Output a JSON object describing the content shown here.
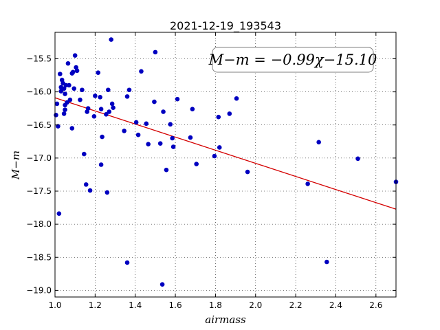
{
  "chart_data": {
    "type": "scatter",
    "title": "2021-12-19_193543",
    "xlabel": "airmass",
    "ylabel": "M−m",
    "xlim": [
      1.0,
      2.7
    ],
    "ylim": [
      -19.1,
      -15.1
    ],
    "y_inverted": true,
    "grid": true,
    "x_ticks": [
      1.0,
      1.2,
      1.4,
      1.6,
      1.8,
      2.0,
      2.2,
      2.4,
      2.6
    ],
    "x_tick_labels": [
      "1.0",
      "1.2",
      "1.4",
      "1.6",
      "1.8",
      "2.0",
      "2.2",
      "2.4",
      "2.6"
    ],
    "y_ticks": [
      -15.5,
      -16.0,
      -16.5,
      -17.0,
      -17.5,
      -18.0,
      -18.5,
      -19.0
    ],
    "y_tick_labels": [
      "−15.5",
      "−16.0",
      "−16.5",
      "−17.0",
      "−17.5",
      "−18.0",
      "−18.5",
      "−19.0"
    ],
    "annotation": "M−m = −0.99χ−15.10",
    "annotation_position": "top-right",
    "fit": {
      "slope": -0.99,
      "intercept": -15.1,
      "color": "#d40000"
    },
    "marker_color": "#0000c0",
    "points": [
      [
        1.005,
        -16.35
      ],
      [
        1.01,
        -16.18
      ],
      [
        1.015,
        -16.52
      ],
      [
        1.02,
        -17.84
      ],
      [
        1.025,
        -15.73
      ],
      [
        1.03,
        -15.99
      ],
      [
        1.03,
        -15.93
      ],
      [
        1.035,
        -15.82
      ],
      [
        1.04,
        -15.87
      ],
      [
        1.045,
        -15.95
      ],
      [
        1.045,
        -16.33
      ],
      [
        1.05,
        -16.27
      ],
      [
        1.05,
        -16.03
      ],
      [
        1.05,
        -16.2
      ],
      [
        1.055,
        -15.9
      ],
      [
        1.06,
        -16.16
      ],
      [
        1.065,
        -15.57
      ],
      [
        1.07,
        -15.9
      ],
      [
        1.075,
        -16.12
      ],
      [
        1.085,
        -16.55
      ],
      [
        1.085,
        -15.72
      ],
      [
        1.09,
        -15.7
      ],
      [
        1.095,
        -15.95
      ],
      [
        1.1,
        -15.45
      ],
      [
        1.105,
        -15.63
      ],
      [
        1.11,
        -15.68
      ],
      [
        1.125,
        -16.12
      ],
      [
        1.135,
        -15.97
      ],
      [
        1.145,
        -16.94
      ],
      [
        1.155,
        -17.4
      ],
      [
        1.16,
        -16.3
      ],
      [
        1.165,
        -16.25
      ],
      [
        1.175,
        -17.49
      ],
      [
        1.195,
        -16.37
      ],
      [
        1.2,
        -16.06
      ],
      [
        1.215,
        -15.71
      ],
      [
        1.225,
        -16.08
      ],
      [
        1.23,
        -16.26
      ],
      [
        1.23,
        -17.1
      ],
      [
        1.235,
        -16.68
      ],
      [
        1.255,
        -16.34
      ],
      [
        1.26,
        -17.52
      ],
      [
        1.265,
        -15.97
      ],
      [
        1.27,
        -16.3
      ],
      [
        1.28,
        -15.21
      ],
      [
        1.285,
        -16.18
      ],
      [
        1.29,
        -16.24
      ],
      [
        1.345,
        -16.59
      ],
      [
        1.36,
        -18.58
      ],
      [
        1.36,
        -16.07
      ],
      [
        1.37,
        -15.97
      ],
      [
        1.405,
        -16.46
      ],
      [
        1.415,
        -16.65
      ],
      [
        1.43,
        -15.69
      ],
      [
        1.455,
        -16.48
      ],
      [
        1.465,
        -16.79
      ],
      [
        1.495,
        -16.15
      ],
      [
        1.5,
        -15.4
      ],
      [
        1.525,
        -16.78
      ],
      [
        1.535,
        -18.91
      ],
      [
        1.54,
        -16.3
      ],
      [
        1.555,
        -17.18
      ],
      [
        1.575,
        -16.49
      ],
      [
        1.585,
        -16.7
      ],
      [
        1.59,
        -16.83
      ],
      [
        1.61,
        -16.11
      ],
      [
        1.675,
        -16.69
      ],
      [
        1.685,
        -16.26
      ],
      [
        1.705,
        -17.09
      ],
      [
        1.795,
        -16.97
      ],
      [
        1.815,
        -16.38
      ],
      [
        1.82,
        -16.84
      ],
      [
        1.87,
        -16.33
      ],
      [
        1.905,
        -16.1
      ],
      [
        1.96,
        -17.21
      ],
      [
        2.26,
        -17.39
      ],
      [
        2.315,
        -16.76
      ],
      [
        2.355,
        -18.57
      ],
      [
        2.51,
        -17.01
      ],
      [
        2.7,
        -17.36
      ]
    ]
  }
}
